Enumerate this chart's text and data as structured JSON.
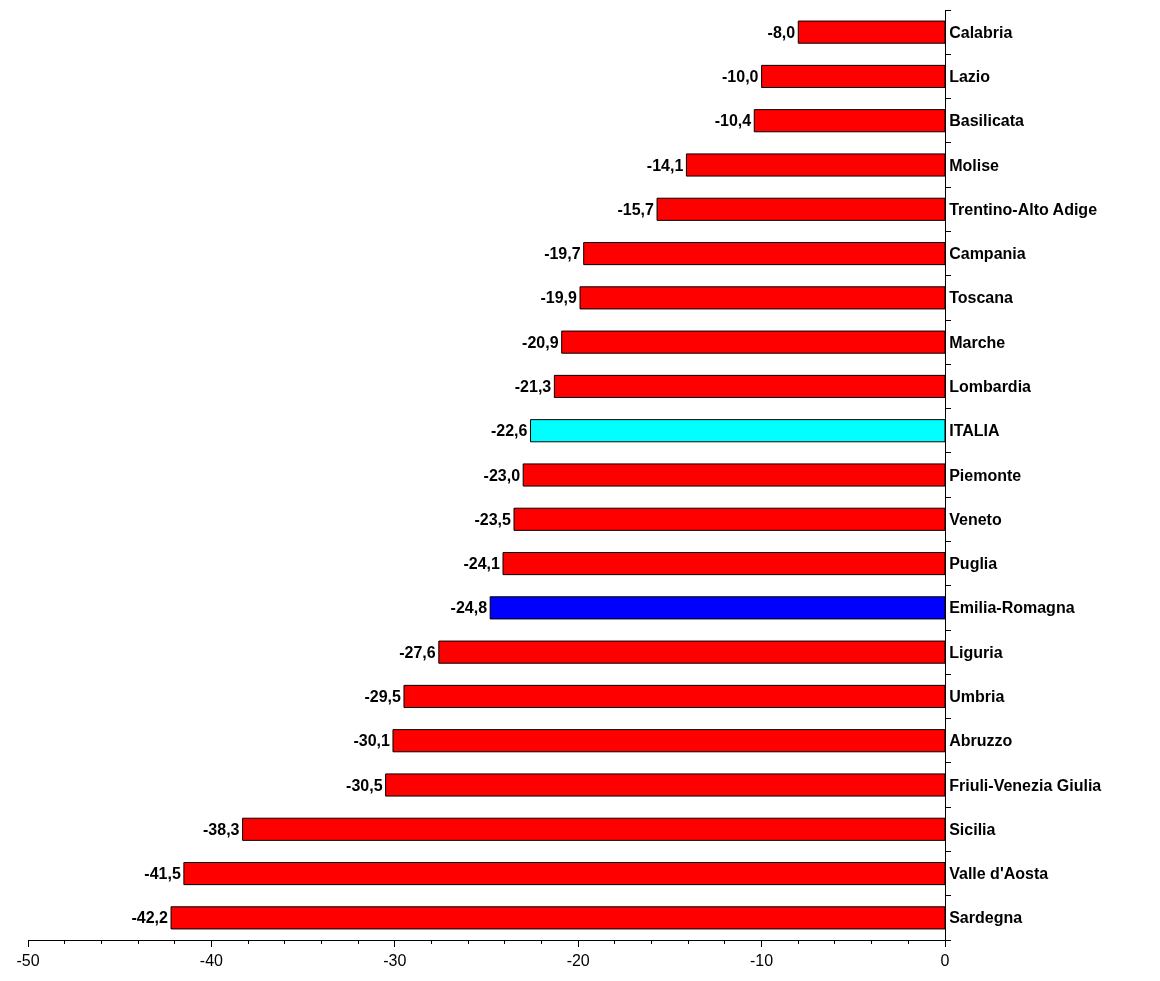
{
  "chart_data": {
    "type": "bar",
    "orientation": "horizontal",
    "categories": [
      "Calabria",
      "Lazio",
      "Basilicata",
      "Molise",
      "Trentino-Alto Adige",
      "Campania",
      "Toscana",
      "Marche",
      "Lombardia",
      "ITALIA",
      "Piemonte",
      "Veneto",
      "Puglia",
      "Emilia-Romagna",
      "Liguria",
      "Umbria",
      "Abruzzo",
      "Friuli-Venezia Giulia",
      "Sicilia",
      "Valle d'Aosta",
      "Sardegna"
    ],
    "values": [
      -8.0,
      -10.0,
      -10.4,
      -14.1,
      -15.7,
      -19.7,
      -19.9,
      -20.9,
      -21.3,
      -22.6,
      -23.0,
      -23.5,
      -24.1,
      -24.8,
      -27.6,
      -29.5,
      -30.1,
      -30.5,
      -38.3,
      -41.5,
      -42.2
    ],
    "value_labels": [
      "-8,0",
      "-10,0",
      "-10,4",
      "-14,1",
      "-15,7",
      "-19,7",
      "-19,9",
      "-20,9",
      "-21,3",
      "-22,6",
      "-23,0",
      "-23,5",
      "-24,1",
      "-24,8",
      "-27,6",
      "-29,5",
      "-30,1",
      "-30,5",
      "-38,3",
      "-41,5",
      "-42,2"
    ],
    "colors": [
      "#ff0000",
      "#ff0000",
      "#ff0000",
      "#ff0000",
      "#ff0000",
      "#ff0000",
      "#ff0000",
      "#ff0000",
      "#ff0000",
      "#00ffff",
      "#ff0000",
      "#ff0000",
      "#ff0000",
      "#0000ff",
      "#ff0000",
      "#ff0000",
      "#ff0000",
      "#ff0000",
      "#ff0000",
      "#ff0000",
      "#ff0000"
    ],
    "xlim": [
      -50,
      0
    ],
    "xticks": [
      -50,
      -40,
      -30,
      -20,
      -10,
      0
    ]
  }
}
